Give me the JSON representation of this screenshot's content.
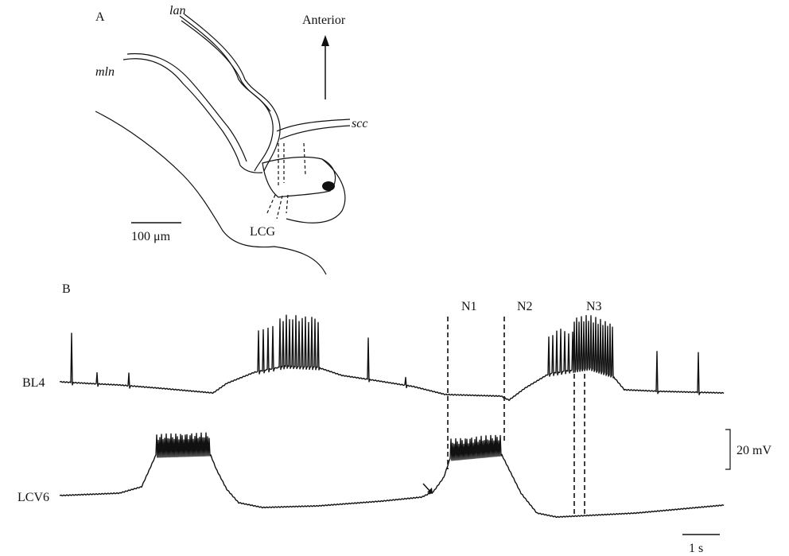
{
  "panel_a": {
    "label": "A",
    "lan": "lan",
    "anterior": "Anterior",
    "mln": "mln",
    "scc": "scc",
    "scale": "100 μm",
    "lcg": "LCG"
  },
  "panel_b": {
    "label": "B",
    "n1": "N1",
    "n2": "N2",
    "n3": "N3",
    "trace1": "BL4",
    "trace2": "LCV6",
    "voltage_scale": "20 mV",
    "time_scale": "1 s"
  }
}
